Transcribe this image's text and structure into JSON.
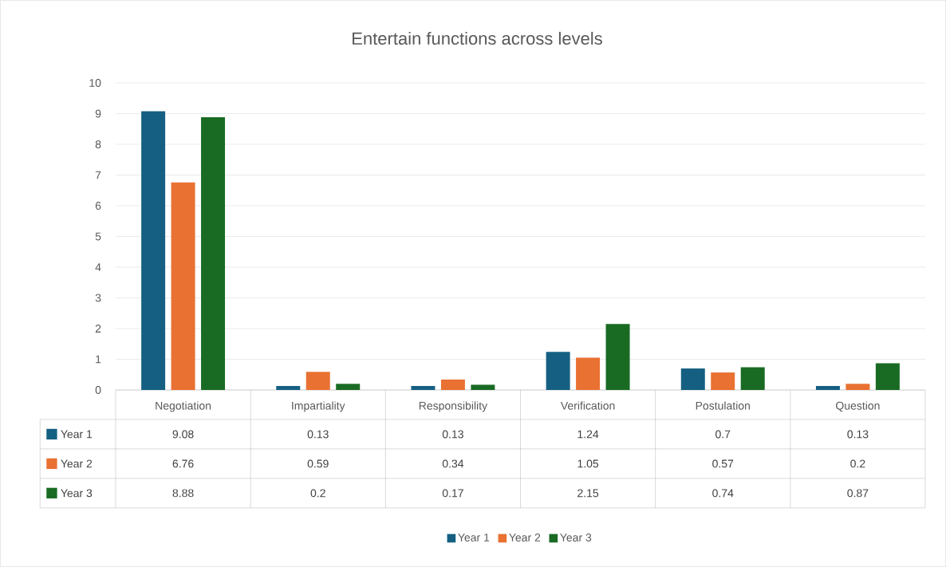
{
  "chart_data": {
    "type": "bar",
    "title": "Entertain functions across levels",
    "categories": [
      "Negotiation",
      "Impartiality",
      "Responsibility",
      "Verification",
      "Postulation",
      "Question"
    ],
    "series": [
      {
        "name": "Year 1",
        "color": "#156082",
        "values": [
          9.08,
          0.13,
          0.13,
          1.24,
          0.7,
          0.13
        ]
      },
      {
        "name": "Year 2",
        "color": "#e97132",
        "values": [
          6.76,
          0.59,
          0.34,
          1.05,
          0.57,
          0.2
        ]
      },
      {
        "name": "Year 3",
        "color": "#196b24",
        "values": [
          8.88,
          0.2,
          0.17,
          2.15,
          0.74,
          0.87
        ]
      }
    ],
    "ylim": [
      0,
      10
    ],
    "yticks": [
      0,
      1,
      2,
      3,
      4,
      5,
      6,
      7,
      8,
      9,
      10
    ],
    "grid": "y",
    "legend": "bottom",
    "data_labels": true
  }
}
